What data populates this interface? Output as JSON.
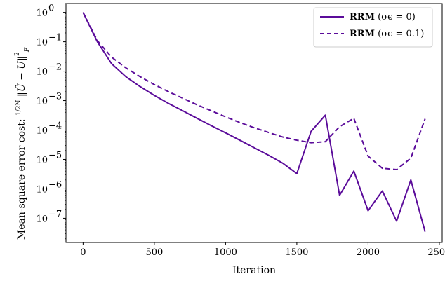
{
  "chart_data": {
    "type": "line",
    "xlabel": "Iteration",
    "ylabel": "Mean-square error cost: 1/(2N) ‖Û − U‖²_F",
    "ylabel_parts": {
      "prefix": "Mean-square error cost: ",
      "frac_num": "1",
      "frac_den": "2N",
      "norm_expr": "Û − U",
      "superscript": "2",
      "subscript": "F"
    },
    "xlim": [
      -120,
      2520
    ],
    "ylim": [
      1.5e-08,
      2.0
    ],
    "yscale": "log",
    "x_ticks": [
      0,
      500,
      1000,
      1500,
      2000,
      2500
    ],
    "x_tick_labels": [
      "0",
      "500",
      "1000",
      "1500",
      "2000",
      "2500"
    ],
    "y_ticks": [
      1e-07,
      1e-06,
      1e-05,
      0.0001,
      0.001,
      0.01,
      0.1,
      1
    ],
    "y_tick_labels": [
      {
        "base": "10",
        "exp": "−7"
      },
      {
        "base": "10",
        "exp": "−6"
      },
      {
        "base": "10",
        "exp": "−5"
      },
      {
        "base": "10",
        "exp": "−4"
      },
      {
        "base": "10",
        "exp": "−3"
      },
      {
        "base": "10",
        "exp": "−2"
      },
      {
        "base": "10",
        "exp": "−1"
      },
      {
        "base": "10",
        "exp": "0"
      }
    ],
    "grid": false,
    "legend": "top-right",
    "series": [
      {
        "name": "RRM (σϵ = 0)",
        "name_bold": "RRM",
        "name_rest": " (σϵ = 0)",
        "color": "#5b0c9a",
        "dash": "solid",
        "x": [
          0,
          100,
          200,
          300,
          400,
          500,
          600,
          700,
          800,
          900,
          1000,
          1100,
          1200,
          1300,
          1400,
          1500,
          1600,
          1700,
          1800,
          1900,
          2000,
          2100,
          2200,
          2300,
          2400
        ],
        "y": [
          1.0,
          0.1,
          0.018,
          0.0065,
          0.003,
          0.0015,
          0.0008,
          0.00045,
          0.00025,
          0.00014,
          8e-05,
          4.5e-05,
          2.5e-05,
          1.4e-05,
          7.5e-06,
          3.3e-06,
          9e-05,
          0.00032,
          6e-07,
          4e-06,
          1.8e-07,
          8.5e-07,
          8e-08,
          2e-06,
          3.5e-08
        ]
      },
      {
        "name": "RRM (σϵ = 0.1)",
        "name_bold": "RRM",
        "name_rest": " (σϵ = 0.1)",
        "color": "#5b0c9a",
        "dash": "dashed",
        "x": [
          0,
          100,
          200,
          300,
          400,
          500,
          600,
          700,
          800,
          900,
          1000,
          1100,
          1200,
          1300,
          1400,
          1500,
          1600,
          1700,
          1800,
          1900,
          2000,
          2100,
          2200,
          2300,
          2400
        ],
        "y": [
          1.0,
          0.11,
          0.03,
          0.013,
          0.0065,
          0.0035,
          0.002,
          0.0012,
          0.00072,
          0.00045,
          0.00028,
          0.00018,
          0.00012,
          8.3e-05,
          5.8e-05,
          4.5e-05,
          3.7e-05,
          4e-05,
          0.00013,
          0.00025,
          1.3e-05,
          5e-06,
          4.5e-06,
          1.1e-05,
          0.00024
        ]
      }
    ]
  }
}
